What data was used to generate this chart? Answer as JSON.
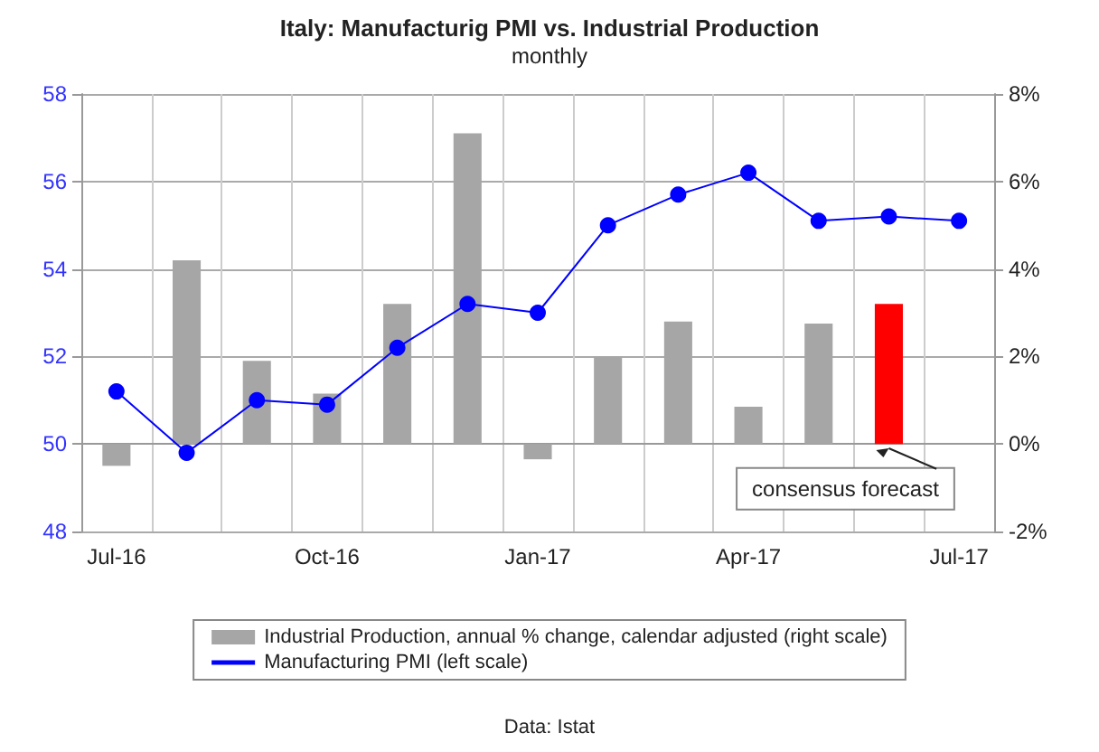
{
  "chart_data": {
    "type": "bar",
    "title": "Italy: Manufacturig PMI vs. Industrial Production",
    "subtitle": "monthly",
    "categories": [
      "Jul-16",
      null,
      null,
      "Oct-16",
      null,
      null,
      "Jan-17",
      null,
      null,
      "Apr-17",
      null,
      null,
      "Jul-17"
    ],
    "series": [
      {
        "name": "Industrial Production, annual % change, calendar adjusted (right scale)",
        "axis": "y2",
        "color": "#a6a6a6",
        "colors": [
          "#a6a6a6",
          "#a6a6a6",
          "#a6a6a6",
          "#a6a6a6",
          "#a6a6a6",
          "#a6a6a6",
          "#a6a6a6",
          "#a6a6a6",
          "#a6a6a6",
          "#a6a6a6",
          "#a6a6a6",
          "#ff0000",
          "#a6a6a6"
        ],
        "values": [
          -0.5,
          4.2,
          1.9,
          1.15,
          3.2,
          7.1,
          -0.35,
          2.0,
          2.8,
          0.85,
          2.75,
          3.2,
          null
        ]
      },
      {
        "name": "Manufacturing PMI (left scale)",
        "type": "line",
        "axis": "y",
        "color": "#0000ff",
        "marker": "circle",
        "values": [
          51.2,
          49.8,
          51.0,
          50.9,
          52.2,
          53.2,
          53.0,
          55.0,
          55.7,
          56.2,
          55.1,
          55.2,
          55.1
        ]
      }
    ],
    "ylim": [
      48,
      58
    ],
    "yticks": [
      48,
      50,
      52,
      54,
      56,
      58
    ],
    "y2lim": [
      -2,
      8
    ],
    "y2ticks": [
      {
        "value": -2,
        "label": "-2%"
      },
      {
        "value": 0,
        "label": "0%"
      },
      {
        "value": 2,
        "label": "2%"
      },
      {
        "value": 4,
        "label": "4%"
      },
      {
        "value": 6,
        "label": "6%"
      },
      {
        "value": 8,
        "label": "8%"
      }
    ],
    "annotations": [
      "consensus forecast",
      "Data: Istat"
    ],
    "grid": true,
    "legend": "bottom",
    "line_style": "solid"
  }
}
